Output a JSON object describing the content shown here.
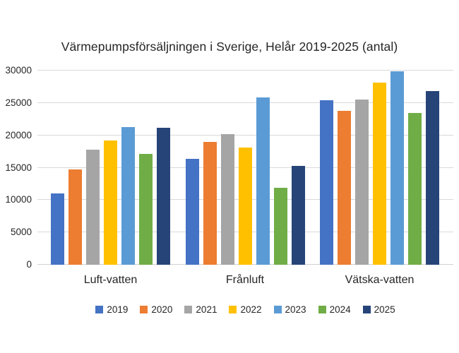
{
  "chart_data": {
    "type": "bar",
    "title": "Värmepumpsförsäljningen i Sverige, Helår 2019-2025 (antal)",
    "categories": [
      "Luft-vatten",
      "Frånluft",
      "Vätska-vatten"
    ],
    "series": [
      {
        "name": "2019",
        "color": "#4472C4",
        "values": [
          11000,
          16400,
          25400
        ]
      },
      {
        "name": "2020",
        "color": "#ED7D31",
        "values": [
          14700,
          19000,
          23800
        ]
      },
      {
        "name": "2021",
        "color": "#A5A5A5",
        "values": [
          17800,
          20200,
          25500
        ]
      },
      {
        "name": "2022",
        "color": "#FFC000",
        "values": [
          19200,
          18100,
          28100
        ]
      },
      {
        "name": "2023",
        "color": "#5B9BD5",
        "values": [
          21300,
          25900,
          29900
        ]
      },
      {
        "name": "2024",
        "color": "#70AD47",
        "values": [
          17100,
          11900,
          23500
        ]
      },
      {
        "name": "2025",
        "color": "#264478",
        "values": [
          21200,
          15300,
          26800
        ]
      }
    ],
    "y_ticks": [
      0,
      5000,
      10000,
      15000,
      20000,
      25000,
      30000
    ],
    "ylim": [
      0,
      30000
    ],
    "grid": true,
    "grid_color": "#D9D9D9",
    "text_color": "#262626",
    "background_color": "#FFFFFF",
    "legend_position": "bottom",
    "legend_labels": [
      "2019",
      "2020",
      "2021",
      "2022",
      "2023",
      "2024",
      "2025"
    ]
  }
}
